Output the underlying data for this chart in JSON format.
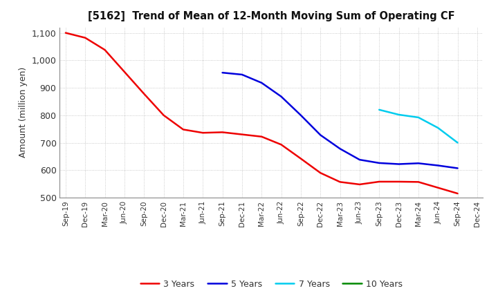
{
  "title": "[5162]  Trend of Mean of 12-Month Moving Sum of Operating CF",
  "ylabel": "Amount (million yen)",
  "background_color": "#ffffff",
  "plot_bg_color": "#ffffff",
  "grid_color": "#bbbbbb",
  "ylim": [
    500,
    1120
  ],
  "yticks": [
    500,
    600,
    700,
    800,
    900,
    1000,
    1100
  ],
  "series": {
    "3 Years": {
      "color": "#ee0000",
      "data_x": [
        0,
        1,
        2,
        3,
        4,
        5,
        6,
        7,
        8,
        9,
        10,
        11,
        12,
        13,
        14,
        15,
        16,
        17,
        18,
        19,
        20
      ],
      "data_y": [
        1100,
        1082,
        1038,
        958,
        878,
        800,
        748,
        736,
        738,
        730,
        722,
        693,
        642,
        590,
        557,
        548,
        558,
        558,
        557,
        536,
        515
      ]
    },
    "5 Years": {
      "color": "#0000dd",
      "data_x": [
        8,
        9,
        10,
        11,
        12,
        13,
        14,
        15,
        16,
        17,
        18,
        19,
        20
      ],
      "data_y": [
        955,
        948,
        918,
        868,
        800,
        728,
        678,
        638,
        626,
        622,
        625,
        617,
        607
      ]
    },
    "7 Years": {
      "color": "#00ccee",
      "data_x": [
        16,
        17,
        18,
        19,
        20
      ],
      "data_y": [
        820,
        802,
        792,
        754,
        700
      ]
    },
    "10 Years": {
      "color": "#008800",
      "data_x": [],
      "data_y": []
    }
  },
  "xtick_labels": [
    "Sep-19",
    "Dec-19",
    "Mar-20",
    "Jun-20",
    "Sep-20",
    "Dec-20",
    "Mar-21",
    "Jun-21",
    "Sep-21",
    "Dec-21",
    "Mar-22",
    "Jun-22",
    "Sep-22",
    "Dec-22",
    "Mar-23",
    "Jun-23",
    "Sep-23",
    "Dec-23",
    "Mar-24",
    "Jun-24",
    "Sep-24",
    "Dec-24"
  ]
}
